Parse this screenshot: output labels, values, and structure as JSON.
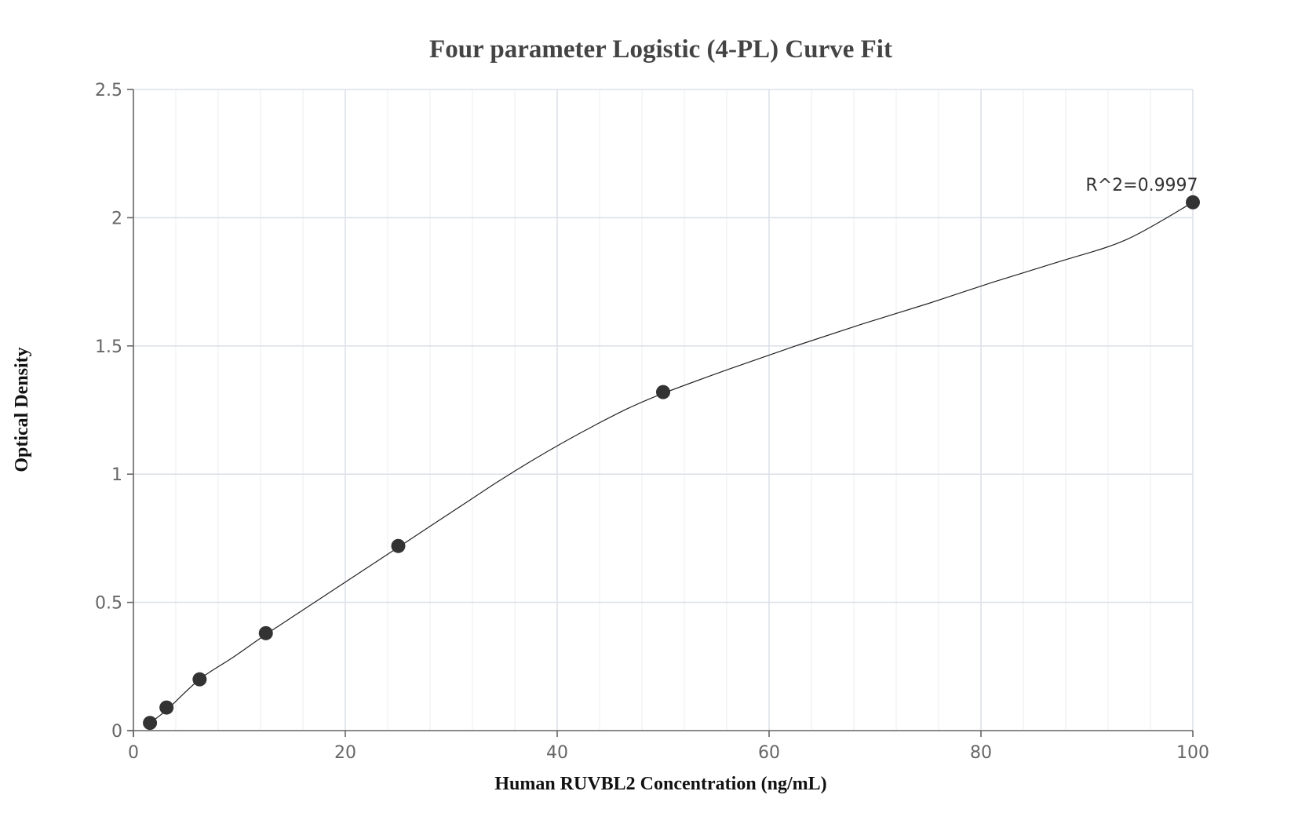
{
  "chart_data": {
    "type": "scatter",
    "title": "Four parameter Logistic (4-PL) Curve Fit",
    "xlabel": "Human RUVBL2 Concentration (ng/mL)",
    "ylabel": "Optical Density",
    "xlim": [
      0,
      100
    ],
    "ylim": [
      0,
      2.5
    ],
    "x_ticks": [
      0,
      20,
      40,
      60,
      80,
      100
    ],
    "y_ticks": [
      0,
      0.5,
      1,
      1.5,
      2,
      2.5
    ],
    "x_tick_labels": [
      "0",
      "20",
      "40",
      "60",
      "80",
      "100"
    ],
    "y_tick_labels": [
      "0",
      "0.5",
      "1",
      "1.5",
      "2",
      "2.5"
    ],
    "grid": true,
    "legend": "none",
    "series": [
      {
        "type": "scatter",
        "x": [
          1.5625,
          3.125,
          6.25,
          12.5,
          25,
          50,
          100
        ],
        "y": [
          0.03,
          0.09,
          0.2,
          0.38,
          0.72,
          1.32,
          2.06
        ]
      },
      {
        "type": "line",
        "x": [
          1.5625,
          3.125,
          6.25,
          9.375,
          12.5,
          15.625,
          18.75,
          21.875,
          25,
          28.125,
          31.25,
          34.375,
          37.5,
          40.625,
          43.75,
          46.875,
          50,
          56.25,
          62.5,
          68.75,
          75,
          81.25,
          87.5,
          93.75,
          100
        ],
        "y": [
          0.03,
          0.08,
          0.2,
          0.285,
          0.375,
          0.46,
          0.545,
          0.63,
          0.715,
          0.8,
          0.885,
          0.97,
          1.05,
          1.125,
          1.195,
          1.26,
          1.315,
          1.41,
          1.5,
          1.585,
          1.665,
          1.75,
          1.83,
          1.915,
          2.06
        ]
      }
    ],
    "annotations": [
      {
        "text": "R^2=0.9997",
        "x": 100,
        "y": 2.06
      }
    ],
    "colors": {
      "point": "#333333",
      "curve": "#222222",
      "grid_major": "#dde1ea",
      "grid_minor": "#eef0f4",
      "axis": "#666666"
    }
  }
}
